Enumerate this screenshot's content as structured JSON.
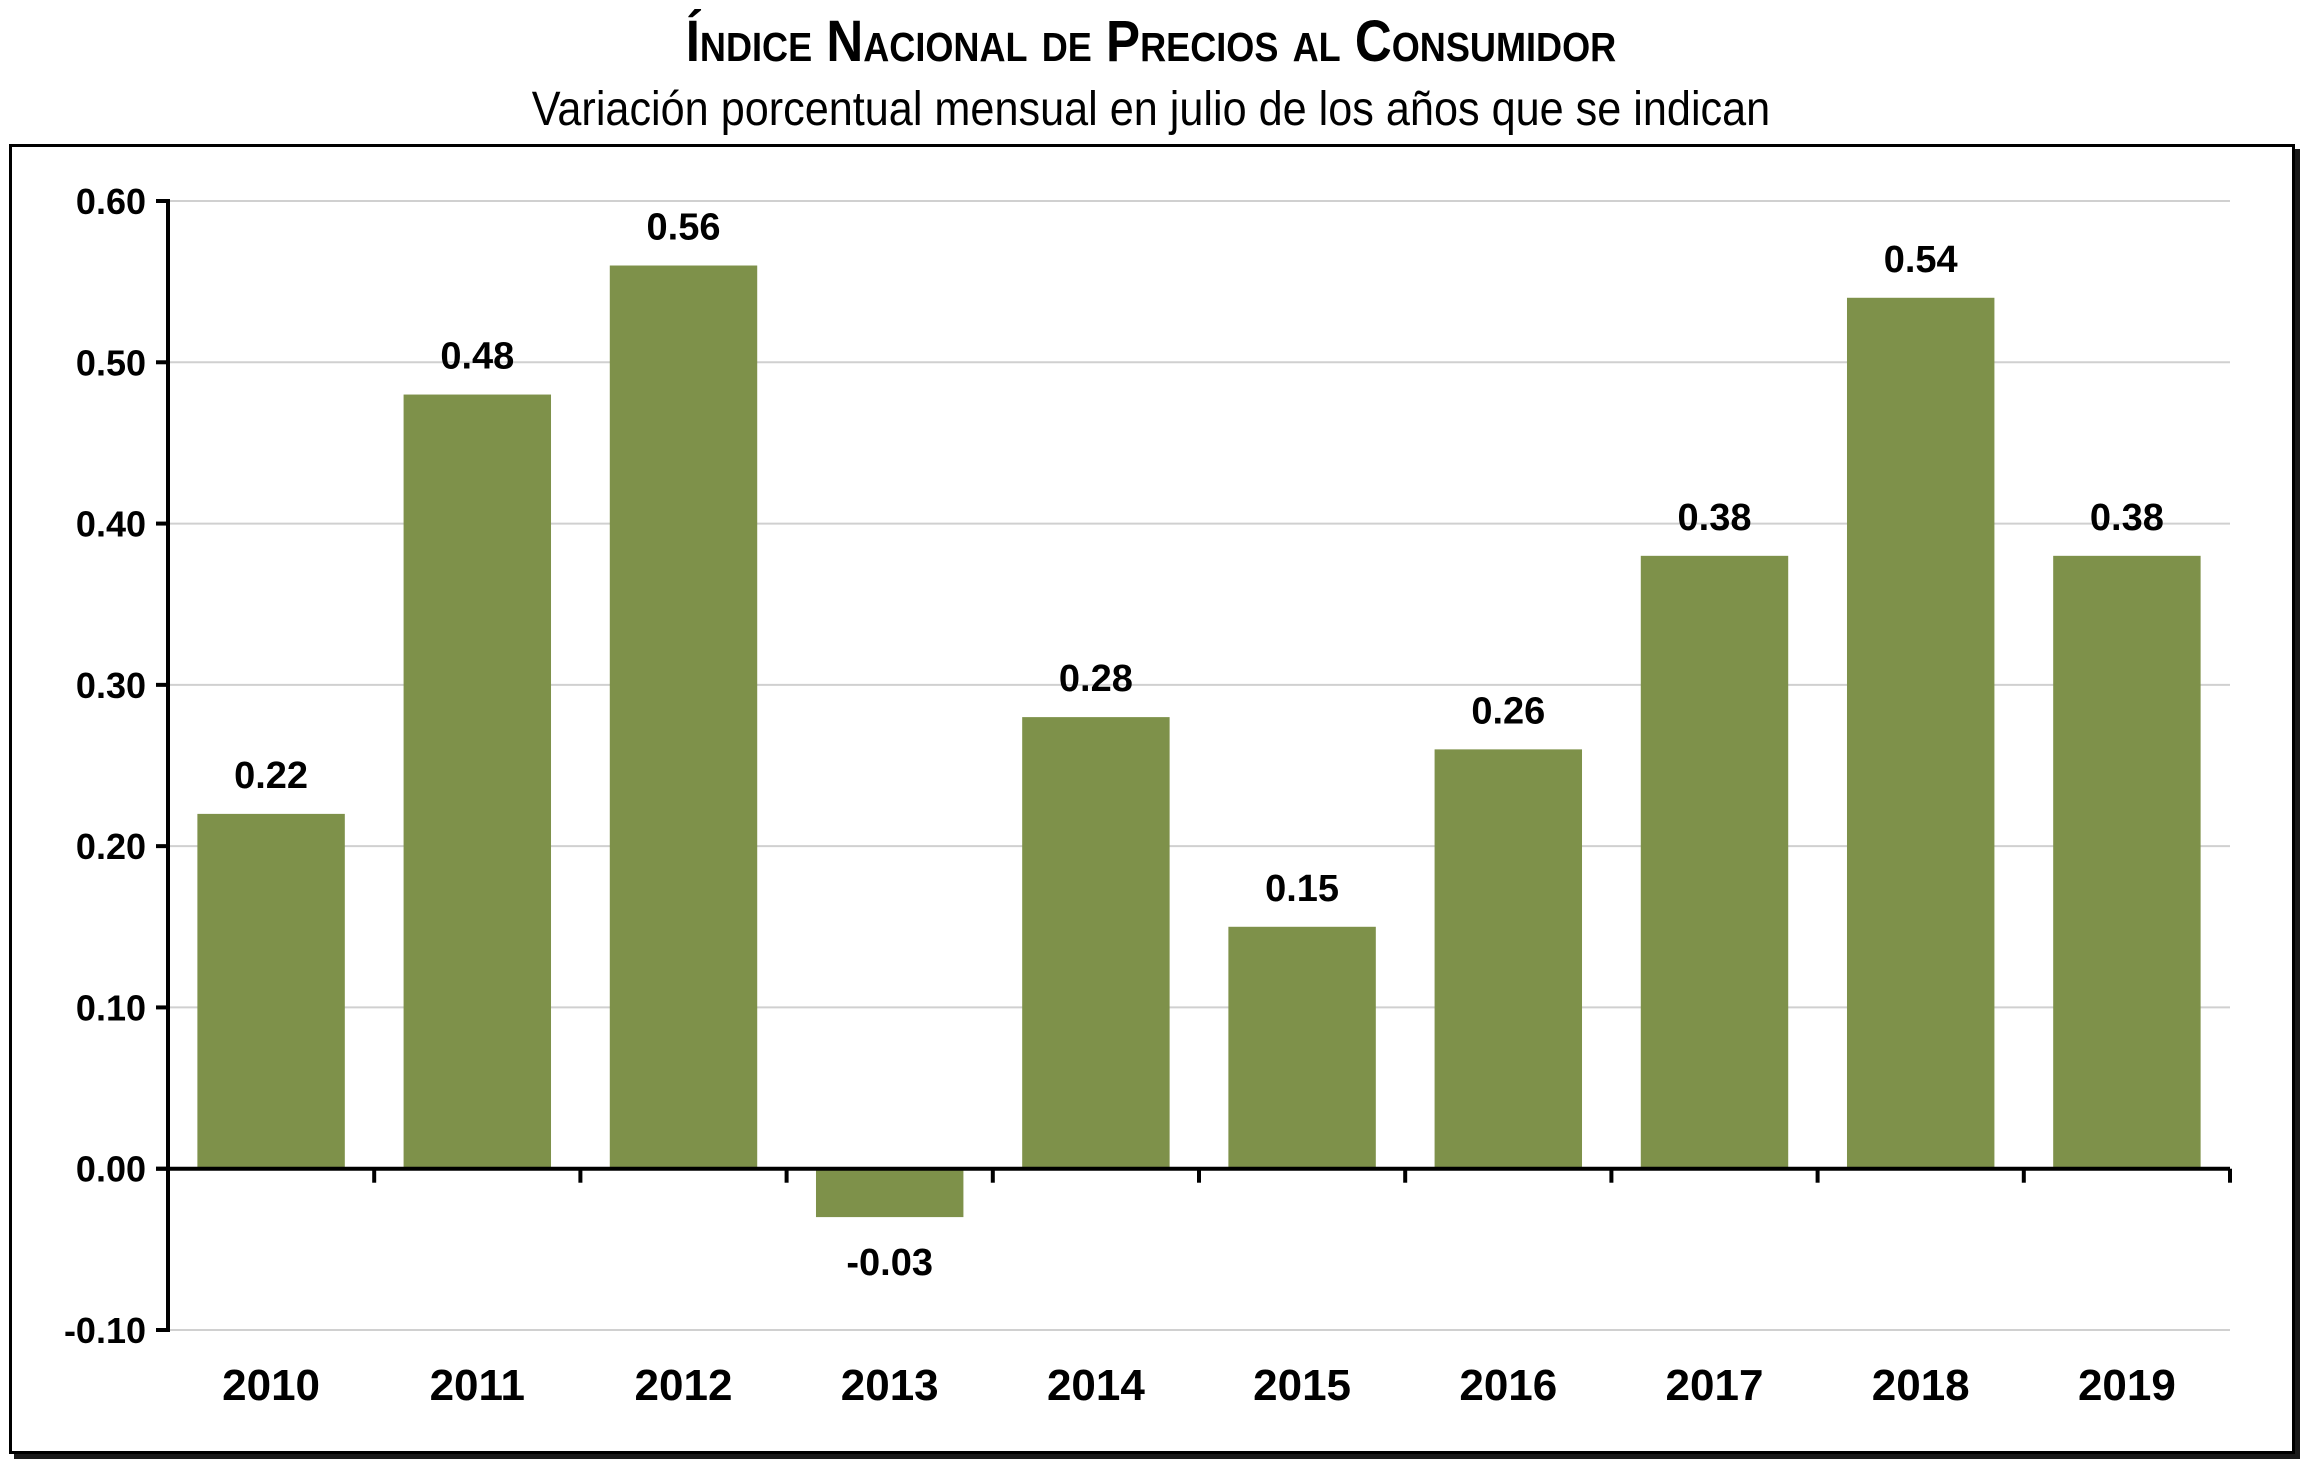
{
  "header": {
    "title": "Índice Nacional de Precios al Consumidor",
    "subtitle": "Variación porcentual mensual en julio de los años que se indican"
  },
  "colors": {
    "bar": "#7E914A",
    "grid": "#D0D0D0",
    "axis": "#000000"
  },
  "chart_data": {
    "type": "bar",
    "title": "Índice Nacional de Precios al Consumidor",
    "subtitle": "Variación porcentual mensual en julio de los años que se indican",
    "xlabel": "",
    "ylabel": "",
    "categories": [
      "2010",
      "2011",
      "2012",
      "2013",
      "2014",
      "2015",
      "2016",
      "2017",
      "2018",
      "2019"
    ],
    "values": [
      0.22,
      0.48,
      0.56,
      -0.03,
      0.28,
      0.15,
      0.26,
      0.38,
      0.54,
      0.38
    ],
    "data_labels": [
      "0.22",
      "0.48",
      "0.56",
      "-0.03",
      "0.28",
      "0.15",
      "0.26",
      "0.38",
      "0.54",
      "0.38"
    ],
    "ylim": [
      -0.1,
      0.6
    ],
    "yticks": [
      -0.1,
      0.0,
      0.1,
      0.2,
      0.3,
      0.4,
      0.5,
      0.6
    ],
    "ytick_labels": [
      "-0.10",
      "0.00",
      "0.10",
      "0.20",
      "0.30",
      "0.40",
      "0.50",
      "0.60"
    ],
    "grid": true,
    "legend": "none"
  }
}
